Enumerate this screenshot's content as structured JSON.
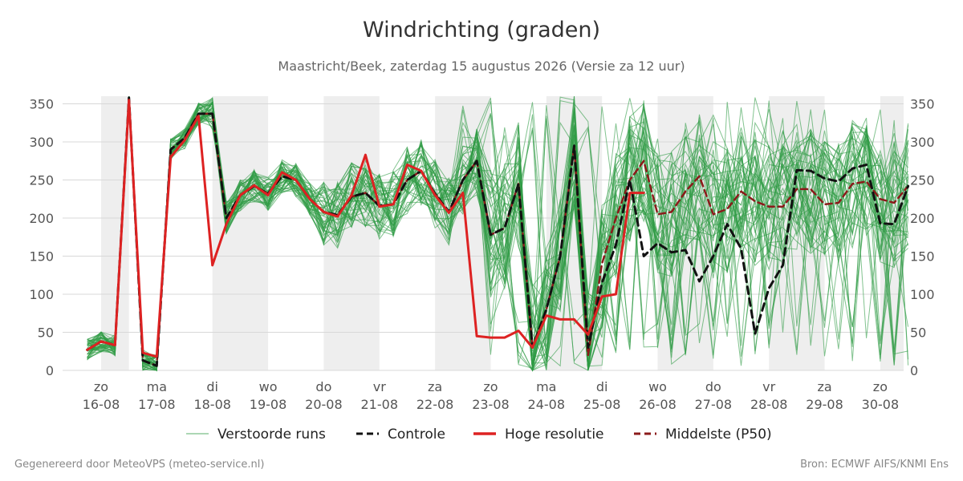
{
  "header": {
    "title": "Windrichting (graden)",
    "subtitle": "Maastricht/Beek, zaterdag 15 augustus 2026 (Versie za 12 uur)"
  },
  "footer": {
    "left": "Gegenereerd door MeteoVPS (meteo-service.nl)",
    "right": "Bron: ECMWF AIFS/KNMI Ens"
  },
  "chart_data": {
    "type": "line",
    "ylim": [
      0,
      360
    ],
    "yticks": [
      0,
      50,
      100,
      150,
      200,
      250,
      300,
      350
    ],
    "xlim": [
      -0.7,
      14.5
    ],
    "days": [
      {
        "x": 0,
        "day": "zo",
        "date": "16-08"
      },
      {
        "x": 1,
        "day": "ma",
        "date": "17-08"
      },
      {
        "x": 2,
        "day": "di",
        "date": "18-08"
      },
      {
        "x": 3,
        "day": "wo",
        "date": "19-08"
      },
      {
        "x": 4,
        "day": "do",
        "date": "20-08"
      },
      {
        "x": 5,
        "day": "vr",
        "date": "21-08"
      },
      {
        "x": 6,
        "day": "za",
        "date": "22-08"
      },
      {
        "x": 7,
        "day": "zo",
        "date": "23-08"
      },
      {
        "x": 8,
        "day": "ma",
        "date": "24-08"
      },
      {
        "x": 9,
        "day": "di",
        "date": "25-08"
      },
      {
        "x": 10,
        "day": "wo",
        "date": "26-08"
      },
      {
        "x": 11,
        "day": "do",
        "date": "27-08"
      },
      {
        "x": 12,
        "day": "vr",
        "date": "28-08"
      },
      {
        "x": 13,
        "day": "za",
        "date": "29-08"
      },
      {
        "x": 14,
        "day": "zo",
        "date": "30-08"
      }
    ],
    "night_bands": [
      [
        0,
        0.5
      ],
      [
        2,
        3
      ],
      [
        4,
        5
      ],
      [
        6,
        7
      ],
      [
        8,
        9
      ],
      [
        10,
        11
      ],
      [
        12,
        13
      ],
      [
        14,
        14.5
      ]
    ],
    "grid": "horizontal",
    "legend_position": "bottom",
    "legend": [
      {
        "name": "Verstoorde runs",
        "color": "#2e9b45",
        "style": "thin"
      },
      {
        "name": "Controle",
        "color": "#111111",
        "style": "dashed"
      },
      {
        "name": "Hoge resolutie",
        "color": "#dd2222",
        "style": "solid"
      },
      {
        "name": "Middelste (P50)",
        "color": "#8b1a1a",
        "style": "dashed"
      }
    ],
    "series": [
      {
        "name": "Controle",
        "color": "#111111",
        "x": [
          -0.25,
          0,
          0.25,
          0.5,
          0.75,
          1,
          1.25,
          1.5,
          1.75,
          2,
          2.25,
          2.5,
          2.75,
          3,
          3.25,
          3.5,
          3.75,
          4,
          4.25,
          4.5,
          4.75,
          5,
          5.25,
          5.5,
          5.75,
          6,
          6.25,
          6.5,
          6.75,
          7,
          7.25,
          7.5,
          7.75,
          8,
          8.25,
          8.5,
          8.75,
          9,
          9.25,
          9.5,
          9.75,
          10,
          10.25,
          10.5,
          10.75,
          11,
          11.25,
          11.5,
          11.75,
          12,
          12.25,
          12.5,
          12.75,
          13,
          13.25,
          13.5,
          13.75,
          14,
          14.25,
          14.5
        ],
        "y": [
          27,
          38,
          33,
          358,
          13,
          6,
          290,
          305,
          337,
          337,
          200,
          230,
          242,
          232,
          255,
          250,
          225,
          208,
          204,
          228,
          233,
          216,
          218,
          250,
          262,
          232,
          208,
          250,
          275,
          178,
          187,
          245,
          30,
          80,
          150,
          295,
          30,
          115,
          165,
          250,
          150,
          167,
          155,
          158,
          117,
          150,
          192,
          160,
          48,
          108,
          138,
          263,
          262,
          252,
          248,
          265,
          270,
          193,
          192,
          242
        ]
      },
      {
        "name": "Middelste (P50)",
        "color": "#8b1a1a",
        "x": [
          -0.25,
          0,
          0.25,
          0.5,
          0.75,
          1,
          1.25,
          1.5,
          1.75,
          2,
          2.25,
          2.5,
          2.75,
          3,
          3.25,
          3.5,
          3.75,
          4,
          4.25,
          4.5,
          4.75,
          5,
          5.25,
          5.5,
          5.75,
          6,
          6.25,
          6.5,
          6.75,
          7,
          7.25,
          7.5,
          7.75,
          8,
          8.25,
          8.5,
          8.75,
          9,
          9.25,
          9.5,
          9.75,
          10,
          10.25,
          10.5,
          10.75,
          11,
          11.25,
          11.5,
          11.75,
          12,
          12.25,
          12.5,
          12.75,
          13,
          13.25,
          13.5,
          13.75,
          14,
          14.25,
          14.5
        ],
        "y": [
          27,
          38,
          33,
          358,
          13,
          6,
          290,
          305,
          337,
          337,
          200,
          230,
          242,
          232,
          255,
          250,
          225,
          208,
          204,
          228,
          233,
          216,
          218,
          250,
          262,
          232,
          208,
          250,
          275,
          178,
          187,
          245,
          30,
          80,
          150,
          295,
          20,
          140,
          200,
          250,
          275,
          205,
          208,
          235,
          255,
          205,
          212,
          235,
          222,
          215,
          215,
          238,
          238,
          218,
          220,
          245,
          248,
          225,
          220,
          242
        ]
      },
      {
        "name": "Hoge resolutie",
        "color": "#dd2222",
        "x": [
          -0.25,
          0,
          0.25,
          0.5,
          0.75,
          1,
          1.25,
          1.5,
          1.75,
          2,
          2.25,
          2.5,
          2.75,
          3,
          3.25,
          3.5,
          3.75,
          4,
          4.25,
          4.5,
          4.75,
          5,
          5.25,
          5.5,
          5.75,
          6,
          6.25,
          6.5,
          6.75,
          7,
          7.25,
          7.5,
          7.75,
          8,
          8.25,
          8.5,
          8.75,
          9,
          9.25,
          9.5,
          9.75
        ],
        "y": [
          27,
          38,
          33,
          355,
          23,
          18,
          280,
          302,
          334,
          138,
          192,
          230,
          243,
          230,
          260,
          250,
          225,
          208,
          202,
          230,
          283,
          215,
          218,
          270,
          262,
          230,
          207,
          233,
          45,
          43,
          43,
          52,
          30,
          72,
          67,
          67,
          47,
          97,
          100,
          233,
          233
        ]
      }
    ]
  }
}
